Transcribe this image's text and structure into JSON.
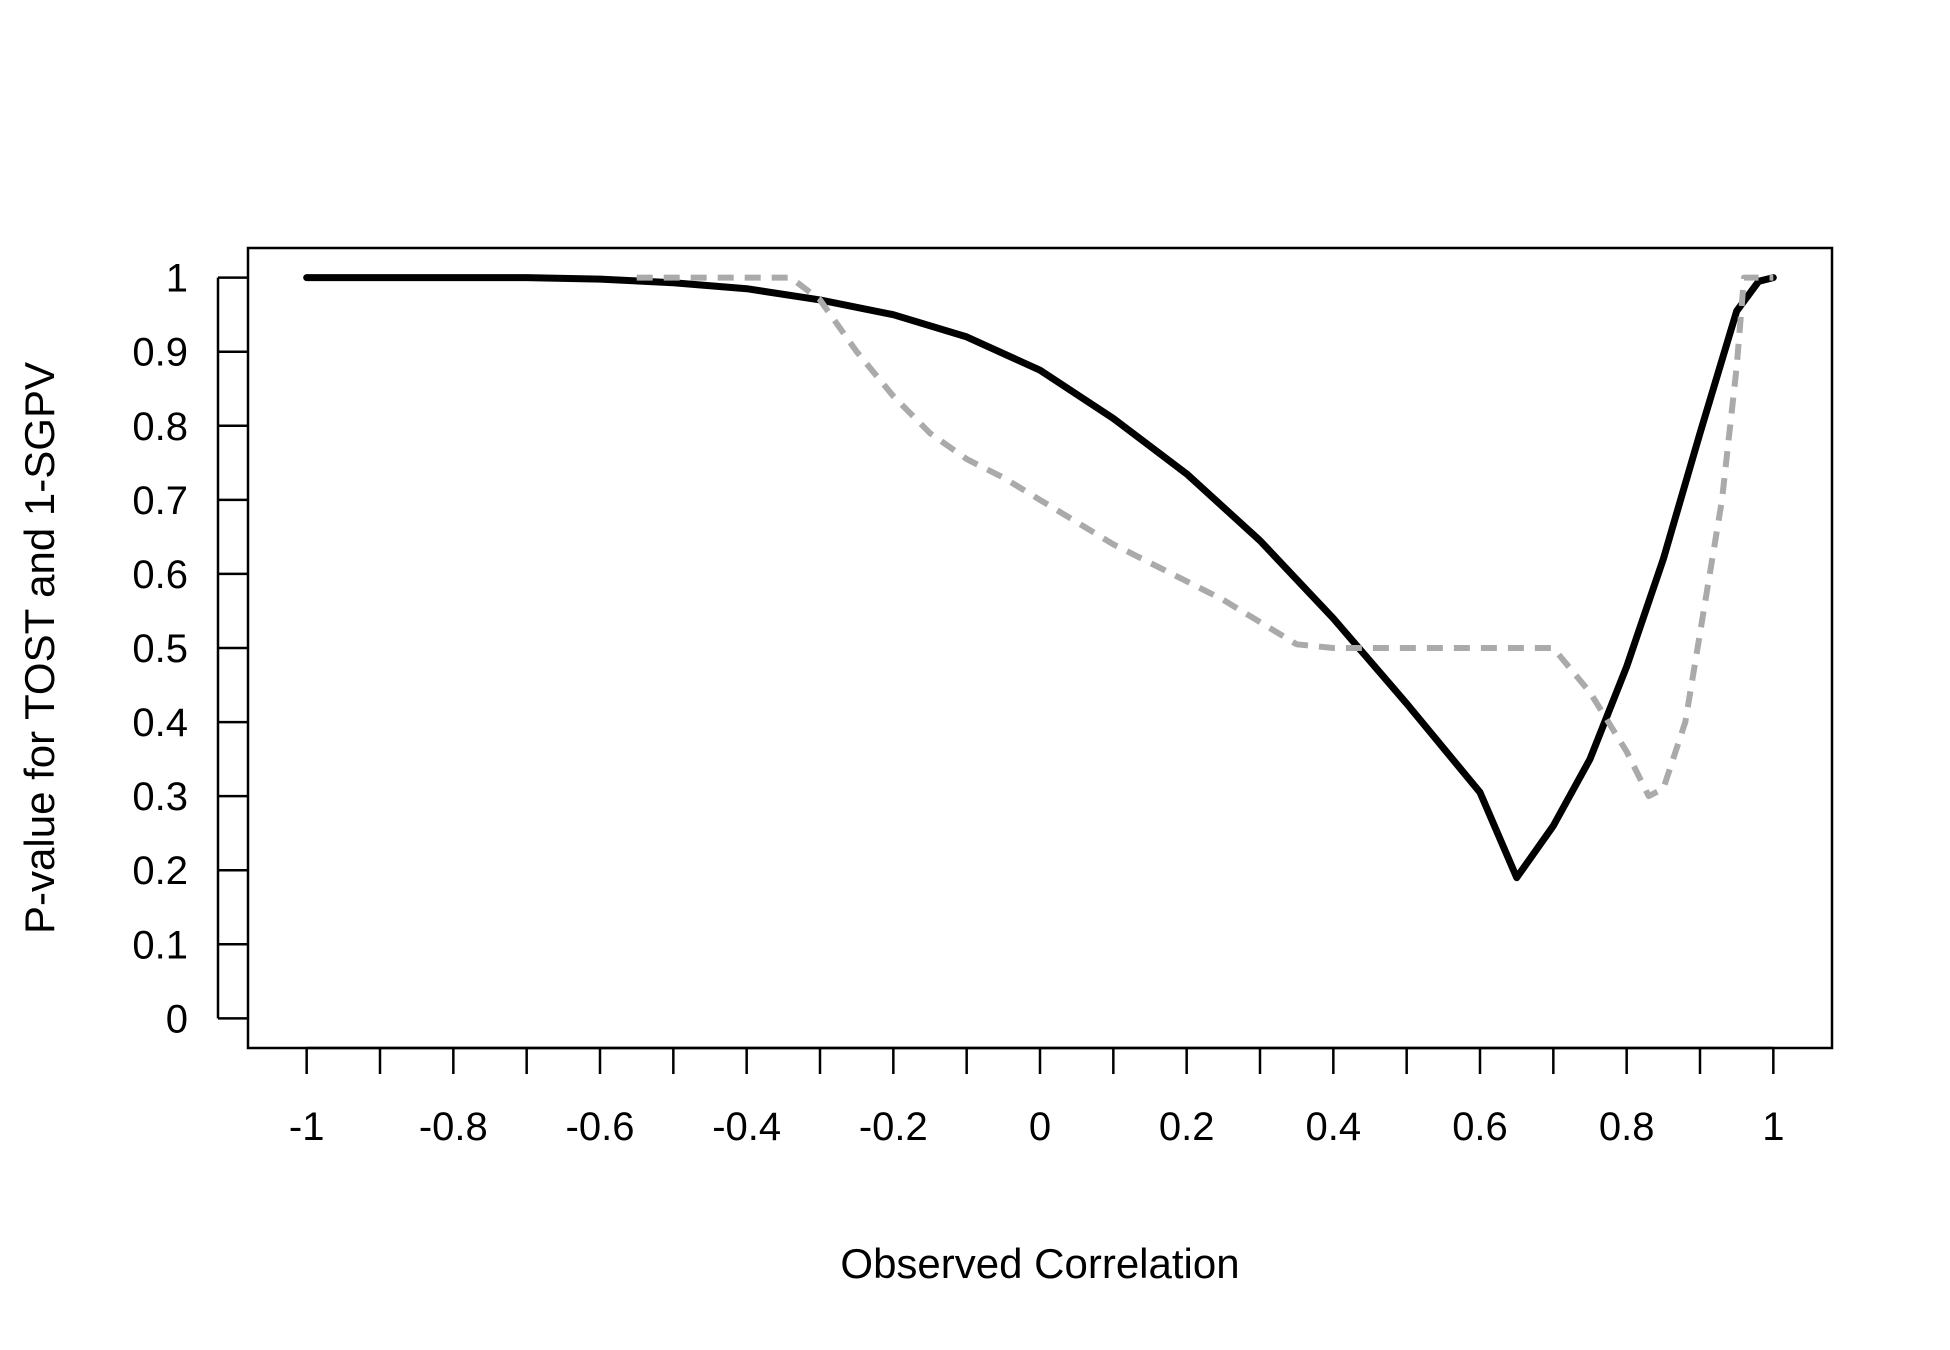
{
  "chart_data": {
    "type": "line",
    "title": "",
    "xlabel": "Observed Correlation",
    "ylabel": "P-value for TOST and 1-SGPV",
    "xlim": [
      -1.08,
      1.08
    ],
    "ylim": [
      -0.04,
      1.04
    ],
    "x_ticks": [
      -1,
      -0.9,
      -0.8,
      -0.7,
      -0.6,
      -0.5,
      -0.4,
      -0.3,
      -0.2,
      -0.1,
      0,
      0.1,
      0.2,
      0.3,
      0.4,
      0.5,
      0.6,
      0.7,
      0.8,
      0.9,
      1
    ],
    "x_tick_labels": [
      "-1",
      "-0.8",
      "-0.6",
      "-0.4",
      "-0.2",
      "0",
      "0.2",
      "0.4",
      "0.6",
      "0.8",
      "1"
    ],
    "x_tick_label_values": [
      -1,
      -0.8,
      -0.6,
      -0.4,
      -0.2,
      0,
      0.2,
      0.4,
      0.6,
      0.8,
      1
    ],
    "y_ticks": [
      0,
      0.1,
      0.2,
      0.3,
      0.4,
      0.5,
      0.6,
      0.7,
      0.8,
      0.9,
      1
    ],
    "y_tick_labels": [
      "0",
      "0.1",
      "0.2",
      "0.3",
      "0.4",
      "0.5",
      "0.6",
      "0.7",
      "0.8",
      "0.9",
      "1"
    ],
    "grid": false,
    "legend": "none",
    "series": [
      {
        "style": "solid",
        "color": "#000000",
        "x": [
          -1,
          -0.9,
          -0.8,
          -0.7,
          -0.6,
          -0.5,
          -0.4,
          -0.3,
          -0.2,
          -0.1,
          0,
          0.1,
          0.2,
          0.3,
          0.4,
          0.5,
          0.6,
          0.65,
          0.7,
          0.75,
          0.8,
          0.85,
          0.9,
          0.95,
          0.98,
          1
        ],
        "y": [
          1.0,
          1.0,
          1.0,
          1.0,
          0.998,
          0.993,
          0.985,
          0.97,
          0.95,
          0.92,
          0.875,
          0.81,
          0.735,
          0.645,
          0.54,
          0.425,
          0.305,
          0.19,
          0.26,
          0.35,
          0.475,
          0.62,
          0.79,
          0.955,
          0.995,
          1.0
        ]
      },
      {
        "style": "dashed",
        "color": "#aaaaaa",
        "x": [
          -0.55,
          -0.4,
          -0.34,
          -0.3,
          -0.25,
          -0.2,
          -0.15,
          -0.1,
          -0.05,
          0,
          0.05,
          0.1,
          0.15,
          0.2,
          0.25,
          0.3,
          0.35,
          0.4,
          0.5,
          0.6,
          0.7,
          0.75,
          0.8,
          0.83,
          0.85,
          0.88,
          0.9,
          0.93,
          0.95,
          0.96,
          0.98,
          1
        ],
        "y": [
          1.0,
          1.0,
          1.0,
          0.97,
          0.9,
          0.84,
          0.79,
          0.755,
          0.73,
          0.7,
          0.67,
          0.64,
          0.615,
          0.59,
          0.565,
          0.535,
          0.505,
          0.5,
          0.5,
          0.5,
          0.5,
          0.44,
          0.36,
          0.3,
          0.31,
          0.4,
          0.52,
          0.7,
          0.88,
          1.0,
          1.0,
          1.0
        ]
      }
    ]
  }
}
